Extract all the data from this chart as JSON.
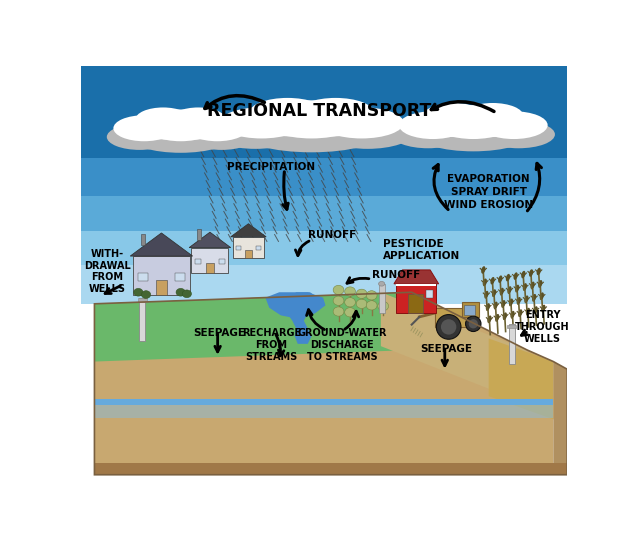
{
  "bg_color": "#ffffff",
  "text_title": "REGIONAL TRANSPORT",
  "text_precipitation": "PRECIPITATION",
  "text_evaporation": "EVAPORATION\nSPRAY DRIFT\nWIND EROSION",
  "text_runoff1": "RUNOFF",
  "text_runoff2": "RUNOFF",
  "text_pesticide": "PESTICIDE\nAPPLICATION",
  "text_seepage1": "SEEPAGE",
  "text_seepage2": "SEEPAGE",
  "text_recharge": "RECHARGE\nFROM\nSTREAMS",
  "text_groundwater": "GROUND-WATER\nDISCHARGE\nTO STREAMS",
  "text_withdrawal": "WITH-\nDRAWAL\nFROM\nWELLS",
  "text_entry": "ENTRY\nTHROUGH\nWELLS",
  "sky_blue_dark": "#1a6faa",
  "sky_blue_mid": "#3a8fc8",
  "sky_blue_light1": "#5aaad8",
  "sky_blue_light2": "#88c8e8",
  "sky_blue_light3": "#aad8f0",
  "green_ground": "#6ab86a",
  "farm_tan": "#c8b078",
  "wheat_tan": "#c8a855",
  "underground_tan": "#c8a870",
  "underground_side": "#b09060",
  "underground_dark": "#a07848",
  "water_blue": "#4488cc",
  "water_blue2": "#66aadd",
  "label_fontsize": 7.0,
  "title_fontsize": 12.5,
  "arrow_lw": 2.0
}
